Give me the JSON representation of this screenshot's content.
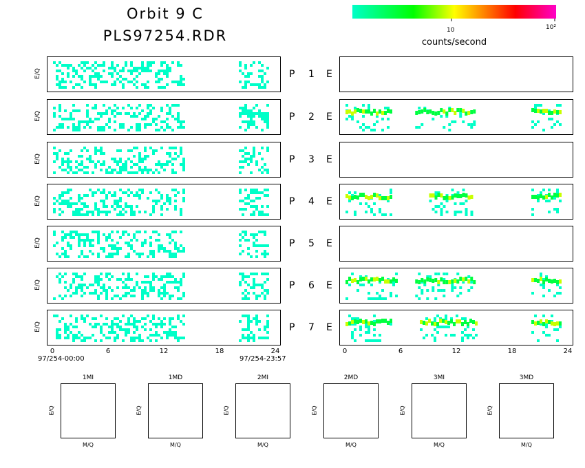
{
  "header": {
    "title_line1": "Orbit 9 C",
    "title_line2": "PLS97254.RDR"
  },
  "colorbar": {
    "tick_10": "10",
    "tick_100": "10²",
    "unit": "counts/second",
    "stops": [
      "#00ffc8",
      "#00ff00",
      "#ffff00",
      "#ff8000",
      "#ff0000",
      "#ff00c8"
    ]
  },
  "panels": [
    {
      "label": "P",
      "num": "1",
      "elabel": "E"
    },
    {
      "label": "P",
      "num": "2",
      "elabel": "E"
    },
    {
      "label": "P",
      "num": "3",
      "elabel": "E"
    },
    {
      "label": "P",
      "num": "4",
      "elabel": "E"
    },
    {
      "label": "P",
      "num": "5",
      "elabel": "E"
    },
    {
      "label": "P",
      "num": "6",
      "elabel": "E"
    },
    {
      "label": "P",
      "num": "7",
      "elabel": "E"
    }
  ],
  "axis": {
    "ylabel": "E/Q",
    "xticks": [
      "0",
      "6",
      "12",
      "18",
      "24"
    ],
    "start": "97/254-00:00",
    "end": "97/254-23:57"
  },
  "mass_panels": [
    {
      "label": "1MI",
      "xlabel": "M/Q",
      "ylabel": "E/Q"
    },
    {
      "label": "1MD",
      "xlabel": "M/Q",
      "ylabel": "E/Q"
    },
    {
      "label": "2MI",
      "xlabel": "M/Q",
      "ylabel": "E/Q"
    },
    {
      "label": "2MD",
      "xlabel": "M/Q",
      "ylabel": "E/Q"
    },
    {
      "label": "3MI",
      "xlabel": "M/Q",
      "ylabel": "E/Q"
    },
    {
      "label": "3MD",
      "xlabel": "M/Q",
      "ylabel": "E/Q"
    }
  ],
  "chart_data": {
    "type": "heatmap",
    "x_range_hours": [
      0,
      24
    ],
    "color_scale": "log counts/second",
    "left_column_active_hours": [
      [
        0,
        14
      ],
      [
        20,
        23
      ]
    ],
    "right_column_bands": {
      "1": [],
      "2": [
        [
          0,
          5
        ],
        [
          7.5,
          14
        ],
        [
          20,
          23
        ]
      ],
      "3": [],
      "4": [
        [
          0,
          5
        ],
        [
          9,
          13.5
        ],
        [
          20,
          23
        ]
      ],
      "5": [],
      "6": [
        [
          0,
          5.5
        ],
        [
          7.5,
          14
        ],
        [
          20,
          23
        ]
      ],
      "7": [
        [
          0,
          5
        ],
        [
          8,
          14
        ],
        [
          20,
          23
        ]
      ]
    }
  }
}
